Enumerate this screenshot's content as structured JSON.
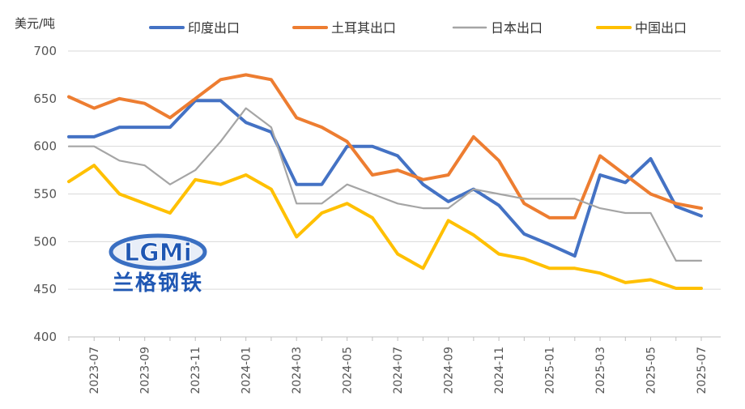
{
  "chart_data": {
    "type": "line",
    "ylabel": "美元/吨",
    "ylim": [
      400,
      700
    ],
    "yticks": [
      400,
      450,
      500,
      550,
      600,
      650,
      700
    ],
    "x": [
      "2023-06",
      "2023-07",
      "2023-08",
      "2023-09",
      "2023-10",
      "2023-11",
      "2023-12",
      "2024-01",
      "2024-02",
      "2024-03",
      "2024-04",
      "2024-05",
      "2024-06",
      "2024-07",
      "2024-08",
      "2024-09",
      "2024-10",
      "2024-11",
      "2024-12",
      "2025-01",
      "2025-02",
      "2025-03",
      "2025-04",
      "2025-05",
      "2025-06",
      "2025-07"
    ],
    "xtick_labels": [
      "2023-07",
      "2023-09",
      "2023-11",
      "2024-01",
      "2024-03",
      "2024-05",
      "2024-07",
      "2024-09",
      "2024-11",
      "2025-01",
      "2025-03",
      "2025-05",
      "2025-07"
    ],
    "grid": true,
    "legend_position": "top",
    "series": [
      {
        "name": "印度出口",
        "color": "#4472C4",
        "values": [
          610,
          610,
          620,
          620,
          620,
          648,
          648,
          625,
          615,
          560,
          560,
          600,
          600,
          590,
          560,
          542,
          555,
          538,
          508,
          497,
          485,
          570,
          562,
          587,
          537,
          527
        ]
      },
      {
        "name": "土耳其出口",
        "color": "#ED7D31",
        "values": [
          652,
          640,
          650,
          645,
          630,
          650,
          670,
          675,
          670,
          630,
          620,
          605,
          570,
          575,
          565,
          570,
          610,
          585,
          540,
          525,
          525,
          590,
          570,
          550,
          540,
          535
        ]
      },
      {
        "name": "日本出口",
        "color": "#A5A5A5",
        "values": [
          600,
          600,
          585,
          580,
          560,
          575,
          605,
          640,
          620,
          540,
          540,
          560,
          550,
          540,
          535,
          535,
          555,
          550,
          545,
          545,
          545,
          535,
          530,
          530,
          480,
          480
        ]
      },
      {
        "name": "中国出口",
        "color": "#FFC000",
        "values": [
          563,
          580,
          550,
          540,
          530,
          565,
          560,
          570,
          555,
          505,
          530,
          540,
          525,
          487,
          472,
          522,
          507,
          487,
          482,
          472,
          472,
          467,
          457,
          460,
          451,
          451
        ]
      }
    ]
  },
  "logo": {
    "latin": "LGMi",
    "chinese": "兰格钢铁"
  }
}
